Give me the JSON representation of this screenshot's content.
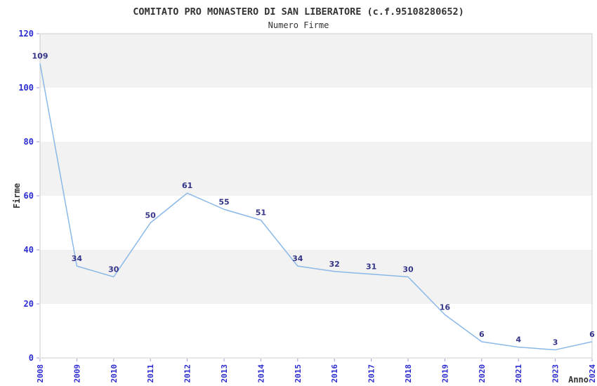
{
  "header": {
    "title": "COMITATO PRO MONASTERO DI SAN LIBERATORE (c.f.95108280652)",
    "subtitle": "Numero Firme"
  },
  "axes": {
    "y_label": "Firme",
    "x_label": "Anno"
  },
  "colors": {
    "line": "#8ab8e8",
    "band_gray": "#f2f2f2",
    "band_white": "#ffffff",
    "plot_border": "#cccccc",
    "tick_text": "#2b2bd0",
    "tick_mark": "#9999dd",
    "value_label": "#333388",
    "heading_text": "#333333",
    "background": "#ffffff"
  },
  "chart_data": {
    "type": "line",
    "title": "COMITATO PRO MONASTERO DI SAN LIBERATORE (c.f.95108280652)",
    "subtitle": "Numero Firme",
    "xlabel": "Anno",
    "ylabel": "Firme",
    "categories": [
      "2008",
      "2009",
      "2010",
      "2011",
      "2012",
      "2013",
      "2014",
      "2015",
      "2016",
      "2017",
      "2018",
      "2019",
      "2020",
      "2021",
      "2023",
      "2024"
    ],
    "values": [
      109,
      34,
      30,
      50,
      61,
      55,
      51,
      34,
      32,
      31,
      30,
      16,
      6,
      4,
      3,
      6
    ],
    "ylim": [
      0,
      120
    ],
    "ytick_step": 20,
    "yticks": [
      0,
      20,
      40,
      60,
      80,
      100,
      120
    ],
    "grid": "alternating-horizontal-bands",
    "legend": "none",
    "data_labels": true
  }
}
